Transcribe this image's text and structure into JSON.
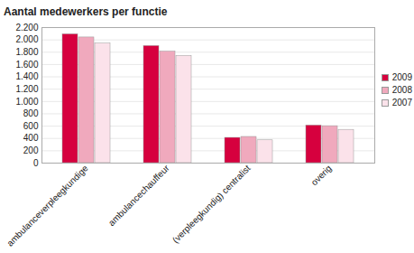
{
  "chart_data": {
    "type": "bar",
    "title": "Aantal medewerkers per functie",
    "categories": [
      "ambulanceverpleegkundige",
      "ambulancechauffeur",
      "(verpleegkundig) centralist",
      "overig"
    ],
    "series": [
      {
        "name": "2009",
        "color": "#d6003e",
        "values": [
          2090,
          1900,
          410,
          610
        ]
      },
      {
        "name": "2008",
        "color": "#f0a9bd",
        "values": [
          2040,
          1810,
          425,
          600
        ]
      },
      {
        "name": "2007",
        "color": "#fbe2ea",
        "values": [
          1940,
          1740,
          370,
          540
        ]
      }
    ],
    "ylim": [
      0,
      2200
    ],
    "yticks": [
      0,
      200,
      400,
      600,
      800,
      {
        "value": 1000,
        "label": "1.000"
      },
      {
        "value": 1200,
        "label": "1.200"
      },
      {
        "value": 1400,
        "label": "1.400"
      },
      {
        "value": 1600,
        "label": "1.600"
      },
      {
        "value": 1800,
        "label": "1.800"
      },
      {
        "value": 2000,
        "label": "2.000"
      },
      {
        "value": 2200,
        "label": "2.200"
      }
    ],
    "grid": true,
    "legend": "right"
  }
}
